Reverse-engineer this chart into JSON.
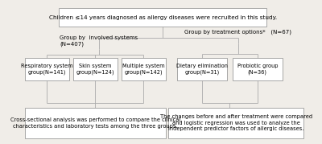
{
  "bg_color": "#f0ede8",
  "box_color": "#ffffff",
  "border_color": "#888888",
  "line_color": "#aaaaaa",
  "text_color": "#000000",
  "title_text": "Children ≤14 years diagnosed as allergy diseases were recruited in this study.",
  "left_group_label": "Group by  involved systems\n(N=407)",
  "right_group_label": "Group by treatment options*   (N=67)",
  "left_boxes": [
    "Respiratory system\ngroup(N=141)",
    "Skin system\ngroup(N=124)",
    "Multiple system\ngroup(N=142)"
  ],
  "right_boxes": [
    "Dietary elimination\ngroup(N=31)",
    "Probiotic group\n(N=36)"
  ],
  "left_bottom_text": "Cross-sectional analysis was performed to compare the clinical\ncharacteristics and laboratory tests among the three groups.",
  "right_bottom_text": "The changes before and after treatment were compared\nand logistic regression was used to analyze the\nindependent predictor factors of allergic diseases."
}
